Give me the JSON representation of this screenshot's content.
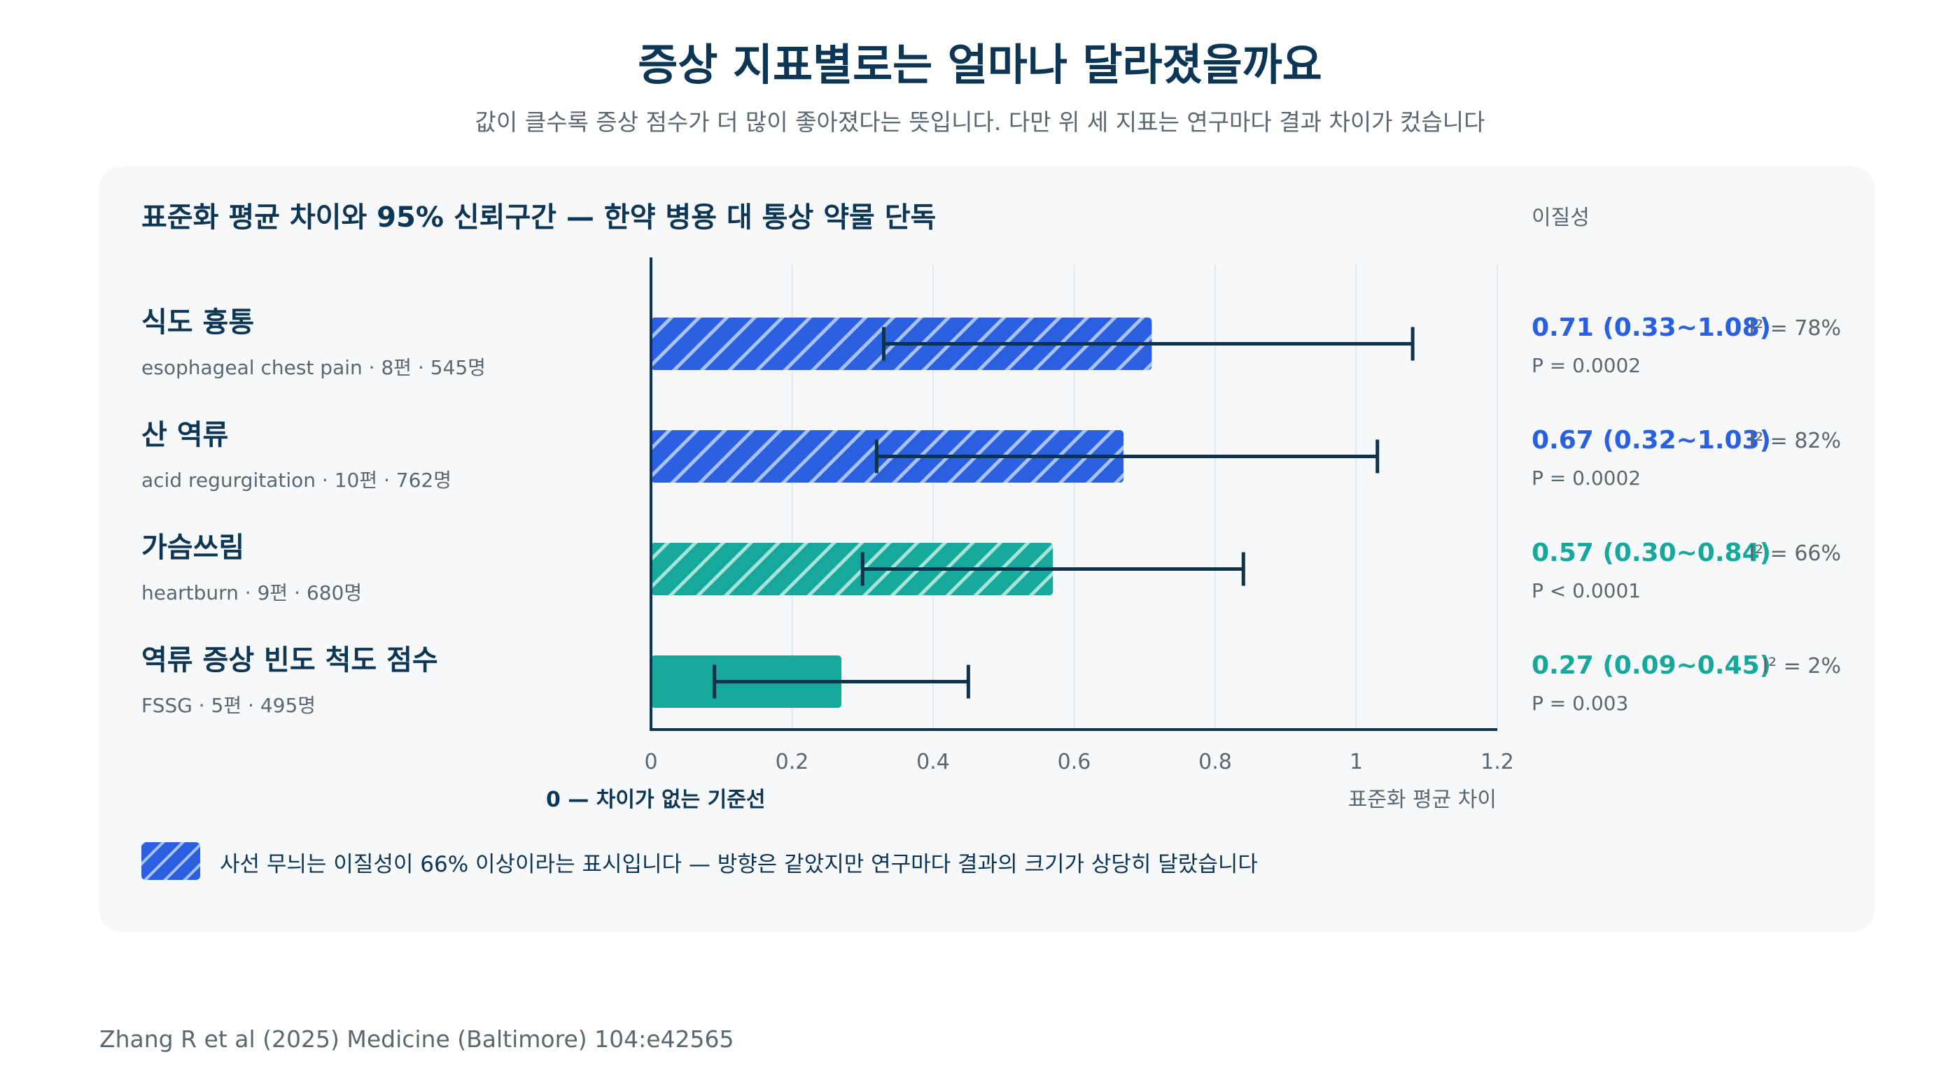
{
  "title": "증상 지표별로는 얼마나 달라졌을까요",
  "subtitle": "값이 클수록 증상 점수가 더 많이 좋아졌다는 뜻입니다. 다만 위 세 지표는 연구마다 결과 차이가 컸습니다",
  "panel_title": "표준화 평균 차이와 95% 신뢰구간 — 한약 병용 대 통상 약물 단독",
  "heterogeneity_header": "이질성",
  "baseline_label": "0 — 차이가 없는 기준선",
  "legend_text": "사선 무늬는 이질성이 66% 이상이라는 표시입니다 — 방향은 같았지만 연구마다 결과의 크기가 상당히 달랐습니다",
  "source": "Zhang R et al (2025) Medicine (Baltimore) 104:e42565",
  "colors": {
    "blue": "#2a5fe0",
    "teal": "#16a89a",
    "whisker": "#0e3350",
    "axis": "#0e3350",
    "grid": "#e3e7ea"
  },
  "chart_data": {
    "type": "bar",
    "orientation": "horizontal",
    "xlabel": "표준화 평균 차이",
    "xlim": [
      0,
      1.2
    ],
    "xticks": [
      "0",
      "0.2",
      "0.4",
      "0.6",
      "0.8",
      "1",
      "1.2"
    ],
    "xtick_values": [
      0,
      0.2,
      0.4,
      0.6,
      0.8,
      1.0,
      1.2
    ],
    "grid": "vertical",
    "rows": [
      {
        "name": "식도 흉통",
        "meta": "esophageal chest pain · 8편 · 545명",
        "smd": 0.71,
        "ci_low": 0.33,
        "ci_high": 1.08,
        "value_text": "0.71 (0.33~1.08)",
        "p_text": "P = 0.0002",
        "i2_text": "I² = 78%",
        "high_heterogeneity": true,
        "color": "#2a5fe0"
      },
      {
        "name": "산 역류",
        "meta": "acid regurgitation · 10편 · 762명",
        "smd": 0.67,
        "ci_low": 0.32,
        "ci_high": 1.03,
        "value_text": "0.67 (0.32~1.03)",
        "p_text": "P = 0.0002",
        "i2_text": "I² = 82%",
        "high_heterogeneity": true,
        "color": "#2a5fe0"
      },
      {
        "name": "가슴쓰림",
        "meta": "heartburn · 9편 · 680명",
        "smd": 0.57,
        "ci_low": 0.3,
        "ci_high": 0.84,
        "value_text": "0.57 (0.30~0.84)",
        "p_text": "P < 0.0001",
        "i2_text": "I² = 66%",
        "high_heterogeneity": true,
        "color": "#16a89a"
      },
      {
        "name": "역류 증상 빈도 척도 점수",
        "meta": "FSSG · 5편 · 495명",
        "smd": 0.27,
        "ci_low": 0.09,
        "ci_high": 0.45,
        "value_text": "0.27 (0.09~0.45)",
        "p_text": "P = 0.003",
        "i2_text": "I² = 2%",
        "high_heterogeneity": false,
        "color": "#16a89a"
      }
    ]
  }
}
